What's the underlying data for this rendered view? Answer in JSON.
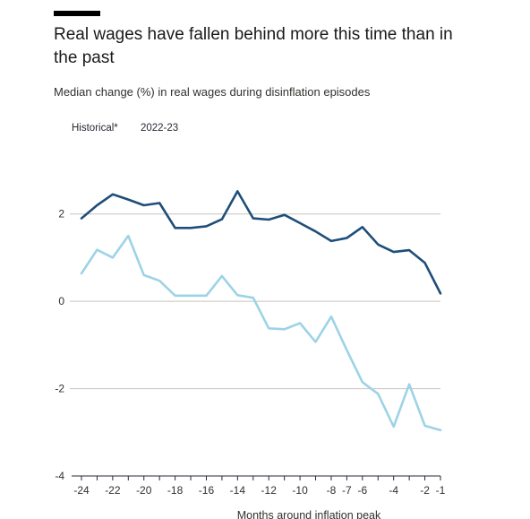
{
  "header": {
    "title": "Real wages have fallen behind more this time than in the past",
    "subtitle": "Median change (%) in real wages during disinflation episodes"
  },
  "chart_data": {
    "type": "line",
    "title": "Real wages have fallen behind more this time than in the past",
    "subtitle": "Median change (%) in real wages during disinflation episodes",
    "xlabel": "Months around inflation peak",
    "ylabel": "",
    "x": [
      -24,
      -23,
      -22,
      -21,
      -20,
      -19,
      -18,
      -17,
      -16,
      -15,
      -14,
      -13,
      -12,
      -11,
      -10,
      -9,
      -8,
      -7,
      -6,
      -5,
      -4,
      -3,
      -2,
      -1
    ],
    "xlim": [
      -24,
      -1
    ],
    "ylim": [
      -4,
      3
    ],
    "xticks": [
      -24,
      -22,
      -20,
      -18,
      -16,
      -14,
      -12,
      -10,
      -8,
      -7,
      -6,
      -4,
      -2,
      -1
    ],
    "xtick_labels": [
      "-24",
      "-22",
      "-20",
      "-18",
      "-16",
      "-14",
      "-12",
      "-10",
      "-8",
      "-7",
      "-6",
      "-4",
      "-2",
      "-1"
    ],
    "yticks": [
      2,
      0,
      -2,
      -4
    ],
    "ytick_labels": [
      "2",
      "0",
      "-2",
      "-4"
    ],
    "grid": "horizontal",
    "legend_position": "top-left",
    "series": [
      {
        "name": "Historical*",
        "color": "#1f4e79",
        "values": [
          1.9,
          2.2,
          2.45,
          2.33,
          2.2,
          2.25,
          1.68,
          1.68,
          1.72,
          1.88,
          2.52,
          1.9,
          1.87,
          1.98,
          1.79,
          1.6,
          1.38,
          1.45,
          1.7,
          1.3,
          1.13,
          1.17,
          0.88,
          0.18
        ]
      },
      {
        "name": "2022-23",
        "color": "#9dd3e6",
        "values": [
          0.64,
          1.18,
          1.0,
          1.5,
          0.6,
          0.47,
          0.13,
          0.13,
          0.13,
          0.58,
          0.14,
          0.08,
          -0.62,
          -0.64,
          -0.5,
          -0.93,
          -0.35,
          -1.12,
          -1.85,
          -2.12,
          -2.87,
          -1.9,
          -2.85,
          -2.95
        ]
      }
    ]
  }
}
